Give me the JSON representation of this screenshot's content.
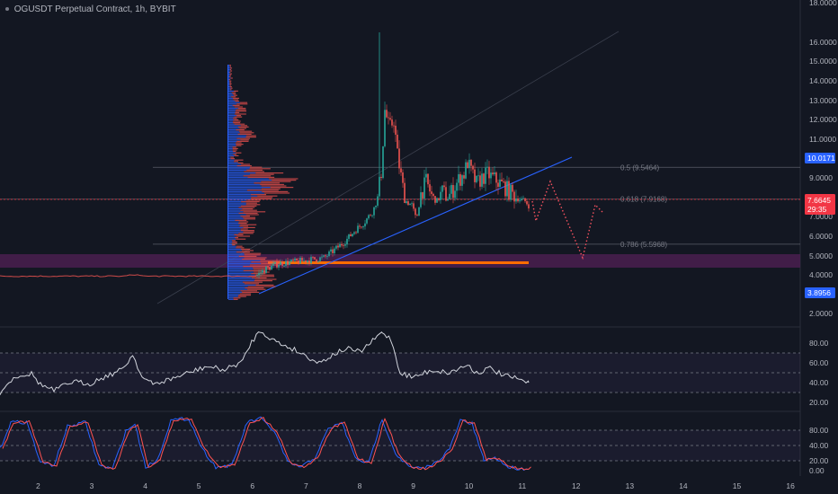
{
  "legend": {
    "symbol": "OGUSDT Perpetual Contract",
    "interval": "1h",
    "exchange": "BYBIT"
  },
  "price_axis": {
    "ticks": [
      "18.0000",
      "16.0000",
      "15.0000",
      "14.0000",
      "13.0000",
      "12.0000",
      "11.0000",
      "9.0000",
      "8.0000",
      "7.0000",
      "6.0000",
      "5.0000",
      "4.0000",
      "2.0000"
    ]
  },
  "badges": {
    "upper_blue": "10.0171",
    "current_price": "7.6645",
    "countdown": "29:35",
    "lower_blue": "3.8956"
  },
  "fib_levels": [
    {
      "label": "0.5 (9.5464)",
      "price": 9.5464
    },
    {
      "label": "0.618 (7.9168)",
      "price": 7.9168
    },
    {
      "label": "0.786 (5.5968)",
      "price": 5.5968
    }
  ],
  "rsi_axis": {
    "ticks": [
      "80.00",
      "60.00",
      "40.00",
      "20.00"
    ]
  },
  "stoch_axis": {
    "ticks": [
      "80.00",
      "40.00",
      "20.00",
      "0.00"
    ]
  },
  "time_axis": {
    "labels": [
      "2",
      "3",
      "4",
      "5",
      "6",
      "7",
      "8",
      "9",
      "10",
      "11",
      "12",
      "13",
      "14",
      "15",
      "16"
    ]
  },
  "colors": {
    "background": "#131722",
    "up": "#26a69a",
    "down": "#ef5350",
    "trendline": "#2962ff",
    "fib_line": "#787b86",
    "fib_label": "#787b86",
    "current_price": "#f23645",
    "support_zone": "#4a1f4f",
    "support_line": "#ff6d00",
    "projection": "#f7525f",
    "rsi_line": "#d1d4dc",
    "stoch_k": "#2962ff",
    "stoch_d": "#ff5252",
    "badge_blue": "#2962ff"
  }
}
